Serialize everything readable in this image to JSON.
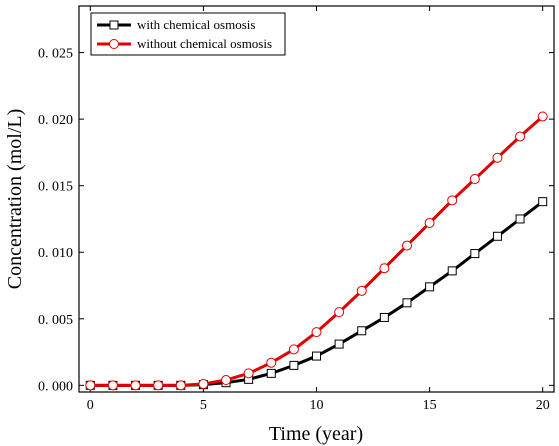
{
  "chart_data": {
    "type": "line",
    "xlabel": "Time (year)",
    "ylabel": "Concentration (mol/L)",
    "xlim": [
      -0.5,
      20.5
    ],
    "ylim": [
      -0.0005,
      0.0285
    ],
    "xticks": [
      0,
      5,
      10,
      15,
      20
    ],
    "xtick_labels": [
      "0",
      "5",
      "10",
      "15",
      "20"
    ],
    "yticks": [
      0.0,
      0.005,
      0.01,
      0.015,
      0.02,
      0.025
    ],
    "ytick_labels": [
      "0. 000",
      "0. 005",
      "0. 010",
      "0. 015",
      "0. 020",
      "0. 025"
    ],
    "grid": false,
    "legend_position": "top-left",
    "x": [
      0,
      1,
      2,
      3,
      4,
      5,
      6,
      7,
      8,
      9,
      10,
      11,
      12,
      13,
      14,
      15,
      16,
      17,
      18,
      19,
      20
    ],
    "series": [
      {
        "name": "with chemical osmosis",
        "color": "#000000",
        "marker": "square",
        "values": [
          0,
          0,
          0,
          0,
          0,
          5e-05,
          0.0002,
          0.00045,
          0.0009,
          0.0015,
          0.0022,
          0.0031,
          0.0041,
          0.0051,
          0.0062,
          0.0074,
          0.0086,
          0.0099,
          0.0112,
          0.0125,
          0.0138
        ]
      },
      {
        "name": "without chemical osmosis",
        "color": "#e00000",
        "marker": "circle",
        "values": [
          0,
          0,
          0,
          0,
          0,
          0.0001,
          0.0004,
          0.0009,
          0.0017,
          0.0027,
          0.004,
          0.0055,
          0.0071,
          0.0088,
          0.0105,
          0.0122,
          0.0139,
          0.0155,
          0.0171,
          0.0187,
          0.0202
        ]
      }
    ]
  }
}
